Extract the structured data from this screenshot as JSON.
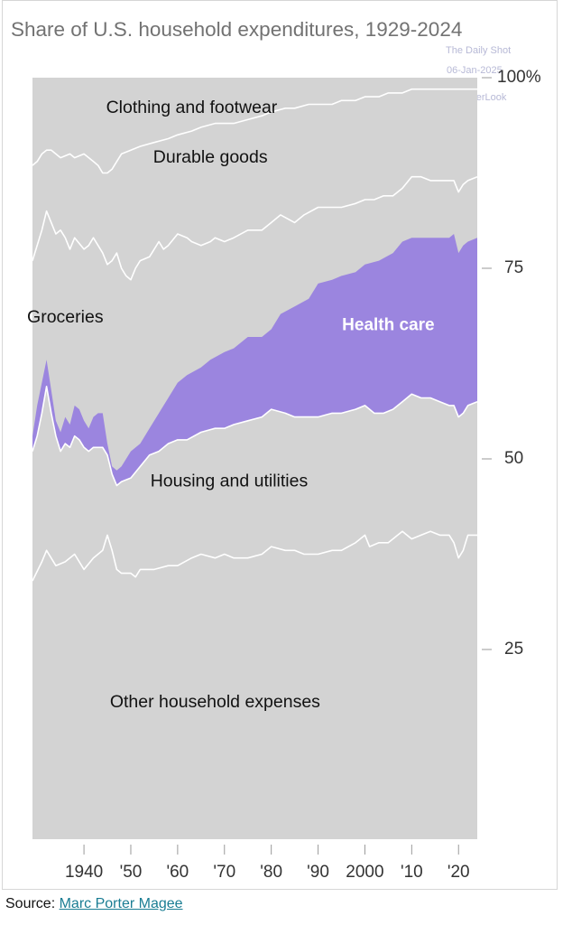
{
  "watermark": {
    "line1": "The Daily Shot",
    "line2": "06-Jan-2025",
    "line3": "@SoberLook"
  },
  "source": {
    "prefix": "Source: ",
    "link_text": "Marc Porter Magee"
  },
  "colors": {
    "stack_fill": "#d3d3d3",
    "boundary": "#ffffff",
    "highlight": "#9b85df",
    "highlight_text": "#ffffff",
    "axis_text": "#333333"
  },
  "chart_data": {
    "type": "area",
    "title": "Share of U.S. household expenditures, 1929-2024",
    "xlim": [
      1929,
      2024
    ],
    "ylim": [
      0,
      100
    ],
    "stacking": "percent",
    "x_ticks": [
      {
        "value": 1940,
        "label": "1940"
      },
      {
        "value": 1950,
        "label": "'50"
      },
      {
        "value": 1960,
        "label": "'60"
      },
      {
        "value": 1970,
        "label": "'70"
      },
      {
        "value": 1980,
        "label": "'80"
      },
      {
        "value": 1990,
        "label": "'90"
      },
      {
        "value": 2000,
        "label": "2000"
      },
      {
        "value": 2010,
        "label": "'10"
      },
      {
        "value": 2020,
        "label": "'20"
      }
    ],
    "y_ticks": [
      {
        "value": 25,
        "label": "25"
      },
      {
        "value": 50,
        "label": "50"
      },
      {
        "value": 75,
        "label": "75"
      },
      {
        "value": 100,
        "label": "100%"
      }
    ],
    "cumulative_boundaries": [
      {
        "name": "Other household expenses",
        "points": [
          [
            1929,
            34
          ],
          [
            1931,
            36.5
          ],
          [
            1932,
            38
          ],
          [
            1934,
            36
          ],
          [
            1936,
            36.5
          ],
          [
            1938,
            37.5
          ],
          [
            1940,
            35.5
          ],
          [
            1942,
            37
          ],
          [
            1944,
            38
          ],
          [
            1945,
            40
          ],
          [
            1946,
            38
          ],
          [
            1947,
            35.5
          ],
          [
            1948,
            35
          ],
          [
            1950,
            35
          ],
          [
            1951,
            34.5
          ],
          [
            1952,
            35.5
          ],
          [
            1955,
            35.5
          ],
          [
            1958,
            36
          ],
          [
            1960,
            36
          ],
          [
            1963,
            37
          ],
          [
            1965,
            37.5
          ],
          [
            1968,
            37
          ],
          [
            1970,
            37.5
          ],
          [
            1972,
            37
          ],
          [
            1975,
            37
          ],
          [
            1978,
            37.5
          ],
          [
            1980,
            38.5
          ],
          [
            1983,
            38
          ],
          [
            1985,
            38
          ],
          [
            1987,
            37.5
          ],
          [
            1990,
            37.5
          ],
          [
            1993,
            38
          ],
          [
            1995,
            38
          ],
          [
            1998,
            39
          ],
          [
            2000,
            40
          ],
          [
            2001,
            38.5
          ],
          [
            2003,
            39
          ],
          [
            2005,
            39
          ],
          [
            2007,
            40
          ],
          [
            2008,
            40.5
          ],
          [
            2010,
            39.5
          ],
          [
            2012,
            40
          ],
          [
            2014,
            40.5
          ],
          [
            2016,
            40
          ],
          [
            2018,
            40
          ],
          [
            2019,
            39
          ],
          [
            2020,
            37
          ],
          [
            2021,
            38
          ],
          [
            2022,
            40
          ],
          [
            2024,
            40
          ]
        ]
      },
      {
        "name": "Housing and utilities",
        "points": [
          [
            1929,
            51
          ],
          [
            1930,
            53
          ],
          [
            1931,
            56
          ],
          [
            1932,
            59.5
          ],
          [
            1933,
            56
          ],
          [
            1934,
            53
          ],
          [
            1935,
            51
          ],
          [
            1936,
            52
          ],
          [
            1937,
            51.5
          ],
          [
            1938,
            53
          ],
          [
            1939,
            52.5
          ],
          [
            1940,
            51.5
          ],
          [
            1941,
            51
          ],
          [
            1942,
            51.5
          ],
          [
            1944,
            51.5
          ],
          [
            1945,
            50.5
          ],
          [
            1946,
            48
          ],
          [
            1947,
            46.5
          ],
          [
            1948,
            47
          ],
          [
            1950,
            47.5
          ],
          [
            1952,
            49
          ],
          [
            1954,
            50.5
          ],
          [
            1956,
            51
          ],
          [
            1958,
            52
          ],
          [
            1960,
            52.5
          ],
          [
            1962,
            52.5
          ],
          [
            1965,
            53.5
          ],
          [
            1968,
            54
          ],
          [
            1970,
            54
          ],
          [
            1972,
            54.5
          ],
          [
            1975,
            55
          ],
          [
            1978,
            55.5
          ],
          [
            1980,
            56.5
          ],
          [
            1983,
            56
          ],
          [
            1985,
            55.5
          ],
          [
            1988,
            55.5
          ],
          [
            1990,
            55.5
          ],
          [
            1993,
            56
          ],
          [
            1995,
            56
          ],
          [
            1998,
            56.5
          ],
          [
            2000,
            57
          ],
          [
            2002,
            56
          ],
          [
            2004,
            56
          ],
          [
            2006,
            56.5
          ],
          [
            2008,
            57.5
          ],
          [
            2010,
            58.5
          ],
          [
            2012,
            58
          ],
          [
            2014,
            58
          ],
          [
            2016,
            57.5
          ],
          [
            2018,
            57
          ],
          [
            2019,
            57
          ],
          [
            2020,
            55.5
          ],
          [
            2021,
            56
          ],
          [
            2022,
            57
          ],
          [
            2024,
            57.5
          ]
        ]
      },
      {
        "name": "Health care",
        "points": [
          [
            1929,
            53
          ],
          [
            1930,
            57
          ],
          [
            1931,
            60
          ],
          [
            1932,
            63
          ],
          [
            1933,
            59
          ],
          [
            1934,
            55
          ],
          [
            1935,
            53.5
          ],
          [
            1936,
            55.5
          ],
          [
            1937,
            54.5
          ],
          [
            1938,
            57
          ],
          [
            1939,
            56.5
          ],
          [
            1940,
            55
          ],
          [
            1941,
            54
          ],
          [
            1942,
            55.5
          ],
          [
            1943,
            56
          ],
          [
            1944,
            56
          ],
          [
            1945,
            52
          ],
          [
            1946,
            49
          ],
          [
            1947,
            48.5
          ],
          [
            1948,
            49
          ],
          [
            1950,
            51
          ],
          [
            1952,
            52
          ],
          [
            1954,
            54
          ],
          [
            1956,
            56
          ],
          [
            1958,
            58
          ],
          [
            1960,
            60
          ],
          [
            1962,
            61
          ],
          [
            1965,
            62
          ],
          [
            1967,
            63
          ],
          [
            1970,
            64
          ],
          [
            1972,
            64.5
          ],
          [
            1975,
            66
          ],
          [
            1978,
            66
          ],
          [
            1980,
            67
          ],
          [
            1982,
            69
          ],
          [
            1985,
            70
          ],
          [
            1988,
            71
          ],
          [
            1990,
            73
          ],
          [
            1993,
            73.5
          ],
          [
            1995,
            74
          ],
          [
            1998,
            74.5
          ],
          [
            2000,
            75.5
          ],
          [
            2003,
            76
          ],
          [
            2006,
            77
          ],
          [
            2008,
            78.5
          ],
          [
            2010,
            79
          ],
          [
            2012,
            79
          ],
          [
            2014,
            79
          ],
          [
            2016,
            79
          ],
          [
            2018,
            79
          ],
          [
            2019,
            79.5
          ],
          [
            2020,
            77
          ],
          [
            2021,
            78
          ],
          [
            2022,
            78.5
          ],
          [
            2024,
            79
          ]
        ]
      },
      {
        "name": "Groceries",
        "points": [
          [
            1929,
            76
          ],
          [
            1930,
            78
          ],
          [
            1931,
            80
          ],
          [
            1932,
            82.5
          ],
          [
            1933,
            81
          ],
          [
            1934,
            79.5
          ],
          [
            1935,
            80
          ],
          [
            1936,
            79
          ],
          [
            1937,
            77.5
          ],
          [
            1938,
            79
          ],
          [
            1940,
            77.5
          ],
          [
            1941,
            78
          ],
          [
            1942,
            79
          ],
          [
            1943,
            78
          ],
          [
            1944,
            77
          ],
          [
            1945,
            75.5
          ],
          [
            1946,
            76
          ],
          [
            1947,
            77
          ],
          [
            1948,
            75
          ],
          [
            1949,
            74
          ],
          [
            1950,
            73.5
          ],
          [
            1951,
            75
          ],
          [
            1952,
            76
          ],
          [
            1954,
            76.5
          ],
          [
            1955,
            77.5
          ],
          [
            1956,
            78.5
          ],
          [
            1957,
            77.5
          ],
          [
            1958,
            78
          ],
          [
            1960,
            79.5
          ],
          [
            1962,
            79
          ],
          [
            1963,
            78.5
          ],
          [
            1965,
            78
          ],
          [
            1967,
            78.5
          ],
          [
            1968,
            79
          ],
          [
            1970,
            78.5
          ],
          [
            1972,
            79
          ],
          [
            1975,
            80
          ],
          [
            1978,
            80
          ],
          [
            1980,
            81
          ],
          [
            1982,
            82
          ],
          [
            1985,
            81
          ],
          [
            1987,
            82
          ],
          [
            1990,
            83
          ],
          [
            1993,
            83
          ],
          [
            1995,
            83
          ],
          [
            1998,
            83.5
          ],
          [
            2000,
            84
          ],
          [
            2002,
            84
          ],
          [
            2004,
            84.5
          ],
          [
            2006,
            84.5
          ],
          [
            2008,
            85.5
          ],
          [
            2010,
            87
          ],
          [
            2012,
            87
          ],
          [
            2014,
            86.5
          ],
          [
            2016,
            86.5
          ],
          [
            2018,
            86.5
          ],
          [
            2019,
            86.5
          ],
          [
            2020,
            85
          ],
          [
            2021,
            86
          ],
          [
            2022,
            86.5
          ],
          [
            2024,
            87
          ]
        ]
      },
      {
        "name": "Durable goods",
        "points": [
          [
            1929,
            88.5
          ],
          [
            1930,
            89
          ],
          [
            1931,
            90
          ],
          [
            1932,
            90.5
          ],
          [
            1933,
            90.5
          ],
          [
            1934,
            90
          ],
          [
            1935,
            89.5
          ],
          [
            1937,
            90
          ],
          [
            1938,
            89.5
          ],
          [
            1940,
            90
          ],
          [
            1942,
            89
          ],
          [
            1943,
            88.5
          ],
          [
            1944,
            87.5
          ],
          [
            1945,
            87.5
          ],
          [
            1946,
            88
          ],
          [
            1947,
            89
          ],
          [
            1948,
            90
          ],
          [
            1950,
            90.5
          ],
          [
            1952,
            91
          ],
          [
            1955,
            91.5
          ],
          [
            1958,
            92
          ],
          [
            1960,
            92.5
          ],
          [
            1963,
            93
          ],
          [
            1965,
            93.5
          ],
          [
            1968,
            94
          ],
          [
            1970,
            94
          ],
          [
            1972,
            94
          ],
          [
            1975,
            94.5
          ],
          [
            1978,
            95
          ],
          [
            1980,
            95.5
          ],
          [
            1983,
            96
          ],
          [
            1985,
            96
          ],
          [
            1988,
            96.5
          ],
          [
            1990,
            96.5
          ],
          [
            1993,
            96.5
          ],
          [
            1995,
            97
          ],
          [
            1998,
            97
          ],
          [
            2000,
            97.5
          ],
          [
            2003,
            97.5
          ],
          [
            2005,
            98
          ],
          [
            2008,
            98
          ],
          [
            2010,
            98.5
          ],
          [
            2013,
            98.5
          ],
          [
            2015,
            98.5
          ],
          [
            2018,
            98.5
          ],
          [
            2020,
            98.5
          ],
          [
            2022,
            98.5
          ],
          [
            2024,
            98.5
          ]
        ]
      }
    ],
    "highlighted_series": "Health care",
    "series_labels": [
      {
        "name": "Clothing and footwear",
        "x": 1963,
        "y": 96
      },
      {
        "name": "Durable goods",
        "x": 1967,
        "y": 89.5
      },
      {
        "name": "Groceries",
        "x": 1936,
        "y": 68.5
      },
      {
        "name": "Health care",
        "x": 2005,
        "y": 67.5,
        "highlight": true
      },
      {
        "name": "Housing and utilities",
        "x": 1971,
        "y": 47
      },
      {
        "name": "Other household expenses",
        "x": 1968,
        "y": 18
      }
    ]
  }
}
